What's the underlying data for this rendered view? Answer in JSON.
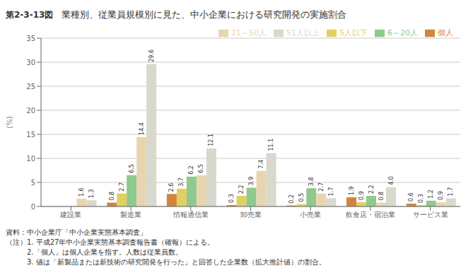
{
  "chart_data": {
    "type": "bar",
    "title": "業種別、従業員規模別に見た、中小企業における研究開発の実施割合",
    "subtitle": "第2-3-13図",
    "ylabel": "(%)",
    "categories": [
      "建設業",
      "製造業",
      "情報通信業",
      "卸売業",
      "小売業",
      "飲食店・宿泊業",
      "サービス業"
    ],
    "series": [
      {
        "name": "個人",
        "color": "#d4843e",
        "values": [
          0.0,
          0.8,
          2.6,
          0.3,
          0.2,
          1.9,
          0.6
        ],
        "value_labels": [
          null,
          "0.8",
          "2.6",
          "0.3",
          "0.2",
          "1.9",
          "0.6"
        ]
      },
      {
        "name": "5人以下",
        "color": "#e0d060",
        "values": [
          0.0,
          2.7,
          3.7,
          2.2,
          0.5,
          0.9,
          0.3
        ],
        "value_labels": [
          null,
          "2.7",
          "3.7",
          "2.2",
          "0.5",
          "0.9",
          "0.3"
        ]
      },
      {
        "name": "6～20人",
        "color": "#8ec98e",
        "values": [
          0.0,
          6.5,
          6.2,
          3.9,
          3.8,
          2.2,
          1.2
        ],
        "value_labels": [
          null,
          "6.5",
          "6.2",
          "3.9",
          "3.8",
          "2.2",
          "1.2"
        ]
      },
      {
        "name": "21～50人",
        "color": "#e8d5b0",
        "values": [
          1.6,
          14.4,
          6.5,
          7.4,
          2.7,
          0.8,
          0.9
        ],
        "value_labels": [
          "1.6",
          "14.4",
          "6.5",
          "7.4",
          "2.7",
          "0.8",
          "0.9"
        ]
      },
      {
        "name": "51人以上",
        "color": "#d8d8cc",
        "values": [
          1.3,
          29.6,
          12.1,
          11.1,
          1.7,
          4.0,
          1.7
        ],
        "value_labels": [
          "1.3",
          "29.6",
          "12.1",
          "11.1",
          "1.7",
          "4.0",
          "1.7"
        ]
      }
    ],
    "ylim": [
      0,
      35
    ],
    "yticks": [
      0,
      5,
      10,
      15,
      20,
      25,
      30,
      35
    ],
    "grid": true,
    "legend": "upper right",
    "data_labels": true,
    "annotations": [
      "資料：中小企業庁「中小企業実態基本調査」",
      "（注）1. 平成27年中小企業実態基本調査報告書（確報）による。",
      "　　　2.「個人」は個人企業を指す。人数は従業員数。",
      "　　　3. 値は「新製品または新技術の研究開発を行った」と回答した企業数（拡大推計値）の割合。"
    ]
  }
}
